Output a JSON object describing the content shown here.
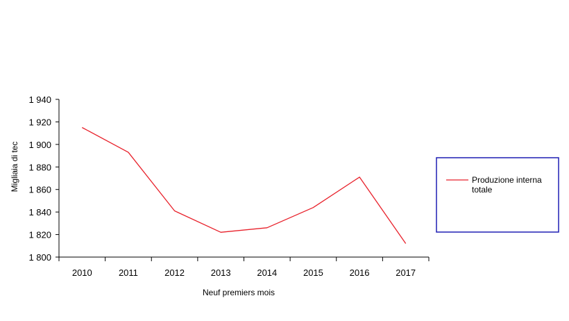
{
  "chart_data": {
    "type": "line",
    "title": "",
    "xlabel": "Neuf premiers mois",
    "ylabel": "Migliaia di tec",
    "categories": [
      "2010",
      "2011",
      "2012",
      "2013",
      "2014",
      "2015",
      "2016",
      "2017"
    ],
    "series": [
      {
        "name": "Produzione interna totale",
        "legend_lines": [
          "Produzione interna",
          "totale"
        ],
        "color": "#e8202a",
        "values": [
          1915,
          1893,
          1841,
          1822,
          1826,
          1844,
          1871,
          1812
        ]
      }
    ],
    "ylim": [
      1800,
      1940
    ],
    "yticks": [
      1800,
      1820,
      1840,
      1860,
      1880,
      1900,
      1920,
      1940
    ],
    "ytick_labels": [
      "1 800",
      "1 820",
      "1 840",
      "1 860",
      "1 880",
      "1 900",
      "1 920",
      "1 940"
    ],
    "grid": false,
    "legend_position": "right",
    "legend_border_color": "#1f1fb4"
  }
}
